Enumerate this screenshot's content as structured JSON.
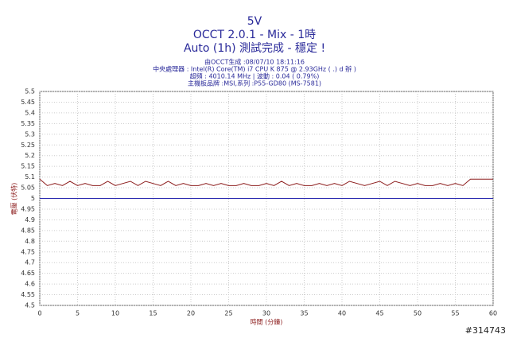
{
  "chart_data": {
    "type": "line",
    "title": "5V",
    "subtitle": [
      "OCCT 2.0.1 - Mix - 1時",
      "Auto (1h) 測試完成 - 穩定 !"
    ],
    "info": [
      "由OCCT生成 :08/07/10 18:11:16",
      "中央處理器 : Intel(R) Core(TM) i7 CPU K 875 @ 2.93GHz (  .) d   辦   )",
      "超頻 : 4010.14 MHz | 波動 : 0.04 ( 0.79%)",
      "主機板品牌 :MSI,系列 :P55-GD80 (MS-7581)"
    ],
    "xlabel": "時間 (分鐘)",
    "ylabel": "電壓 (伏特)",
    "watermark": "#314743",
    "xlim": [
      0,
      60
    ],
    "xticks": [
      0,
      5,
      10,
      15,
      20,
      25,
      30,
      35,
      40,
      45,
      50,
      55,
      60
    ],
    "ylim": [
      4.5,
      5.5
    ],
    "yticks": [
      5.5,
      5.45,
      5.4,
      5.35,
      5.3,
      5.25,
      5.2,
      5.15,
      5.1,
      5.05,
      5,
      4.95,
      4.9,
      4.85,
      4.8,
      4.75,
      4.7,
      4.65,
      4.6,
      4.55,
      4.5
    ],
    "grid": true,
    "series": [
      {
        "color": "#8b1a1a",
        "x": [
          0,
          1,
          2,
          3,
          4,
          5,
          6,
          7,
          8,
          9,
          10,
          11,
          12,
          13,
          14,
          15,
          16,
          17,
          18,
          19,
          20,
          21,
          22,
          23,
          24,
          25,
          26,
          27,
          28,
          29,
          30,
          31,
          32,
          33,
          34,
          35,
          36,
          37,
          38,
          39,
          40,
          41,
          42,
          43,
          44,
          45,
          46,
          47,
          48,
          49,
          50,
          51,
          52,
          53,
          54,
          55,
          56,
          57,
          58,
          59,
          60
        ],
        "values": [
          5.09,
          5.06,
          5.07,
          5.06,
          5.08,
          5.06,
          5.07,
          5.06,
          5.06,
          5.08,
          5.06,
          5.07,
          5.08,
          5.06,
          5.08,
          5.07,
          5.06,
          5.08,
          5.06,
          5.07,
          5.06,
          5.06,
          5.07,
          5.06,
          5.07,
          5.06,
          5.06,
          5.07,
          5.06,
          5.06,
          5.07,
          5.06,
          5.08,
          5.06,
          5.07,
          5.06,
          5.06,
          5.07,
          5.06,
          5.07,
          5.06,
          5.08,
          5.07,
          5.06,
          5.07,
          5.08,
          5.06,
          5.08,
          5.07,
          5.06,
          5.07,
          5.06,
          5.06,
          5.07,
          5.06,
          5.07,
          5.06,
          5.09,
          5.09,
          5.09,
          5.09
        ]
      },
      {
        "color": "#2a2ab0",
        "x": [
          0,
          60
        ],
        "values": [
          5,
          5
        ]
      }
    ]
  }
}
